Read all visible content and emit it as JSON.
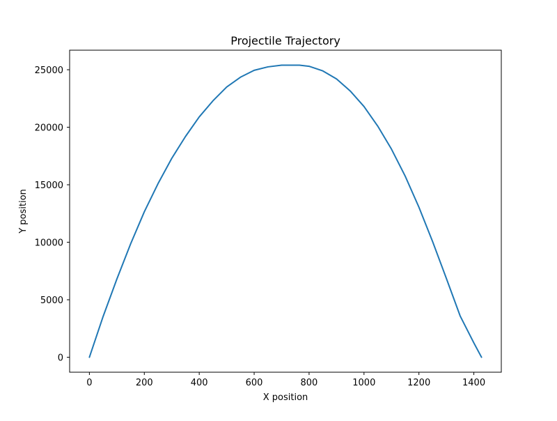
{
  "chart_data": {
    "type": "line",
    "title": "Projectile Trajectory",
    "xlabel": "X position",
    "ylabel": "Y position",
    "xlim": [
      -72,
      1500
    ],
    "ylim": [
      -1300,
      26700
    ],
    "xticks": [
      0,
      200,
      400,
      600,
      800,
      1000,
      1200,
      1400
    ],
    "yticks": [
      0,
      5000,
      10000,
      15000,
      20000,
      25000
    ],
    "grid": false,
    "series": [
      {
        "color": "#1f77b4",
        "x": [
          0,
          50,
          100,
          150,
          200,
          250,
          300,
          350,
          400,
          450,
          500,
          550,
          600,
          650,
          700,
          750,
          765,
          800,
          850,
          900,
          950,
          1000,
          1050,
          1100,
          1150,
          1200,
          1250,
          1300,
          1350,
          1400,
          1428
        ],
        "y": [
          0,
          3550,
          6800,
          9850,
          12650,
          15100,
          17300,
          19200,
          20900,
          22300,
          23500,
          24350,
          24950,
          25250,
          25400,
          25400,
          25400,
          25300,
          24900,
          24200,
          23150,
          21800,
          20100,
          18100,
          15750,
          13050,
          10050,
          6850,
          3600,
          1250,
          0
        ]
      }
    ]
  }
}
